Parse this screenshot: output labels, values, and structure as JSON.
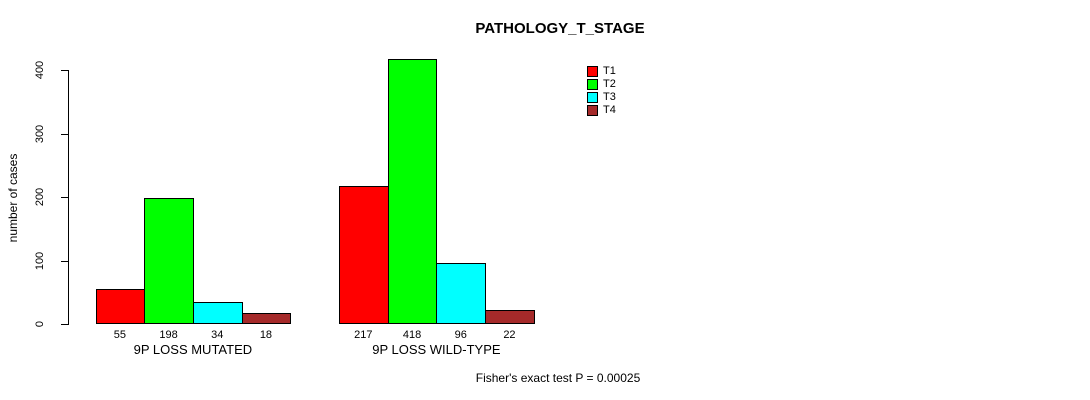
{
  "title": "PATHOLOGY_T_STAGE",
  "ylabel": "number of cases",
  "footer": "Fisher's exact test P = 0.00025",
  "chart_data": {
    "type": "bar",
    "title": "PATHOLOGY_T_STAGE",
    "xlabel": "",
    "ylabel": "number of cases",
    "ylim": [
      0,
      400
    ],
    "yticks": [
      0,
      100,
      200,
      300,
      400
    ],
    "grid": false,
    "legend_position": "top-right",
    "categories": [
      "9P LOSS MUTATED",
      "9P LOSS WILD-TYPE"
    ],
    "series": [
      {
        "name": "T1",
        "color": "#ff0000",
        "values": [
          55,
          217
        ]
      },
      {
        "name": "T2",
        "color": "#00ff00",
        "values": [
          198,
          418
        ]
      },
      {
        "name": "T3",
        "color": "#00ffff",
        "values": [
          34,
          96
        ]
      },
      {
        "name": "T4",
        "color": "#a52a2a",
        "values": [
          18,
          22
        ]
      }
    ],
    "bar_labels": [
      [
        "55",
        "198",
        "34",
        "18"
      ],
      [
        "217",
        "418",
        "96",
        "22"
      ]
    ],
    "annotation": "Fisher's exact test P = 0.00025"
  }
}
